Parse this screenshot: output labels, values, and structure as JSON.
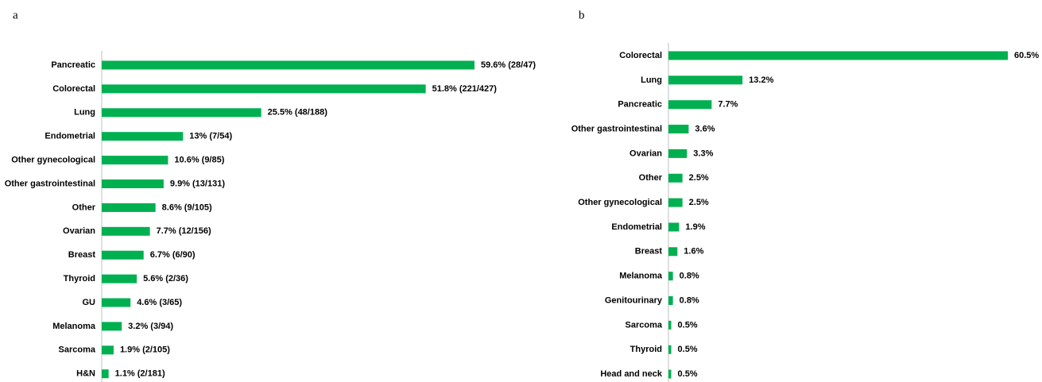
{
  "chart_data": [
    {
      "type": "bar",
      "orientation": "horizontal",
      "panel": "a",
      "color": "#00b050",
      "categories": [
        "Pancreatic",
        "Colorectal",
        "Lung",
        "Endometrial",
        "Other gynecological",
        "Other gastrointestinal",
        "Other",
        "Ovarian",
        "Breast",
        "Thyroid",
        "GU",
        "Melanoma",
        "Sarcoma",
        "H&N"
      ],
      "values": [
        59.6,
        51.8,
        25.5,
        13,
        10.6,
        9.9,
        8.6,
        7.7,
        6.7,
        5.6,
        4.6,
        3.2,
        1.9,
        1.1
      ],
      "value_labels": [
        "59.6% (28/47)",
        "51.8% (221/427)",
        "25.5% (48/188)",
        "13% (7/54)",
        "10.6% (9/85)",
        "9.9% (13/131)",
        "8.6% (9/105)",
        "7.7% (12/156)",
        "6.7% (6/90)",
        "5.6% (2/36)",
        "4.6% (3/65)",
        "3.2% (3/94)",
        "1.9% (2/105)",
        "1.1% (2/181)"
      ]
    },
    {
      "type": "bar",
      "orientation": "horizontal",
      "panel": "b",
      "color": "#00b050",
      "categories": [
        "Colorectal",
        "Lung",
        "Pancreatic",
        "Other gastrointestinal",
        "Ovarian",
        "Other",
        "Other gynecological",
        "Endometrial",
        "Breast",
        "Melanoma",
        "Genitourinary",
        "Sarcoma",
        "Thyroid",
        "Head and neck"
      ],
      "values": [
        60.5,
        13.2,
        7.7,
        3.6,
        3.3,
        2.5,
        2.5,
        1.9,
        1.6,
        0.8,
        0.8,
        0.5,
        0.5,
        0.5
      ],
      "value_labels": [
        "60.5%",
        "13.2%",
        "7.7%",
        "3.6%",
        "3.3%",
        "2.5%",
        "2.5%",
        "1.9%",
        "1.6%",
        "0.8%",
        "0.8%",
        "0.5%",
        "0.5%",
        "0.5%"
      ]
    }
  ]
}
